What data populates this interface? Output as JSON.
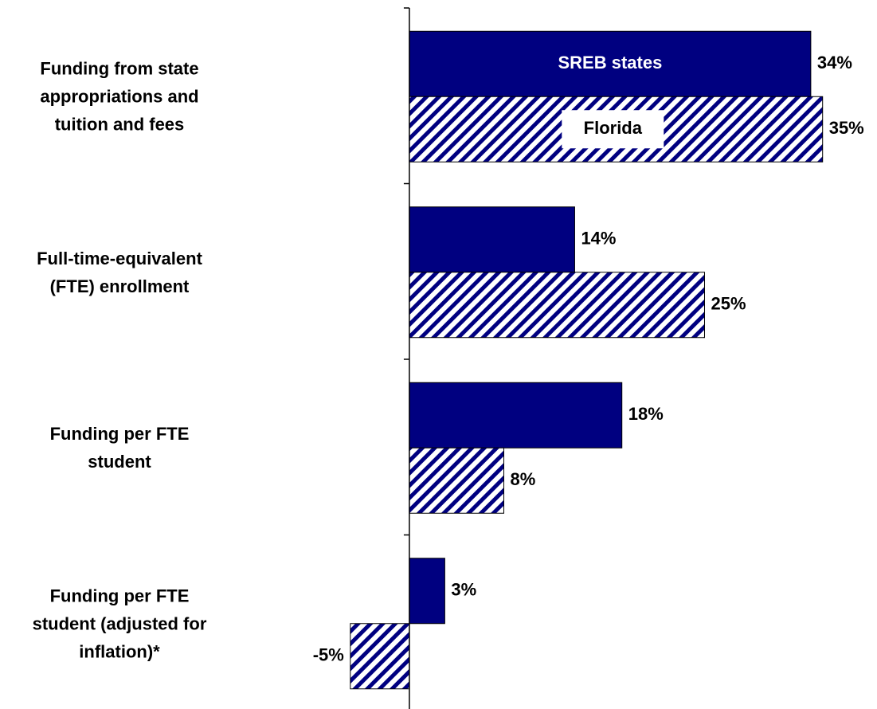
{
  "chart_data": {
    "type": "hbar",
    "categories": [
      "Funding from state\nappropriations and\ntuition and fees",
      "Full-time-equivalent\n(FTE) enrollment",
      "Funding per FTE\nstudent",
      "Funding per FTE\nstudent (adjusted for\ninflation)*"
    ],
    "series": [
      {
        "name": "SREB states",
        "color": "#000080",
        "values": [
          34,
          14,
          18,
          3
        ],
        "value_labels": [
          "34%",
          "14%",
          "18%",
          "3%"
        ]
      },
      {
        "name": "Florida",
        "color": "#000080",
        "hatch": true,
        "values": [
          35,
          25,
          8,
          -5
        ],
        "value_labels": [
          "35%",
          "25%",
          "8%",
          "-5%"
        ]
      }
    ],
    "xlim": [
      -6,
      39
    ]
  }
}
